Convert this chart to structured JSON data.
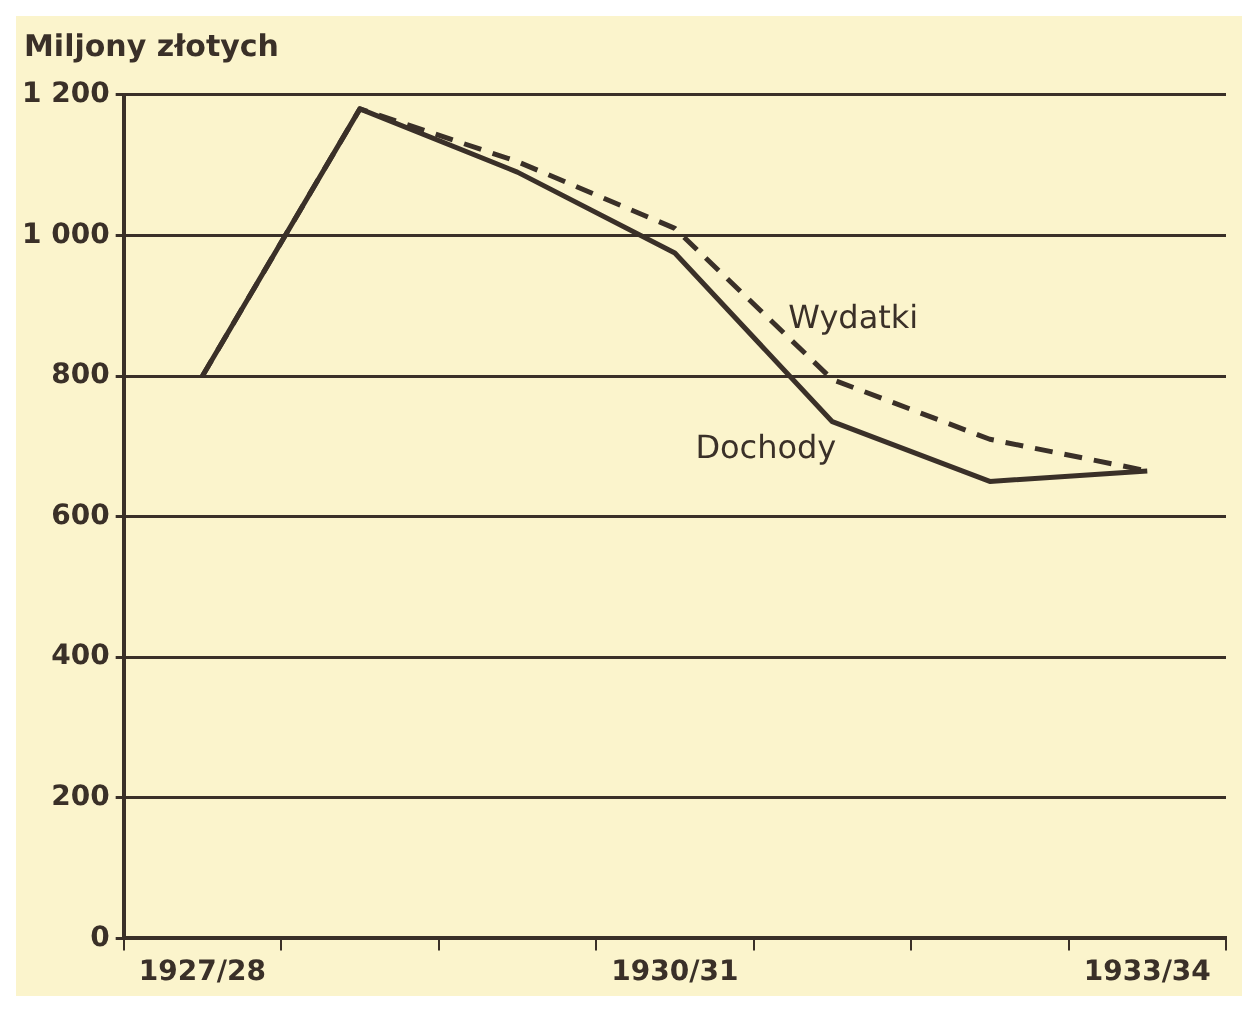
{
  "chart_data": {
    "type": "line",
    "ylabel": "Miljony złotych",
    "categories": [
      "1927/28",
      null,
      null,
      "1930/31",
      null,
      null,
      "1933/34"
    ],
    "series": [
      {
        "name": "Dochody",
        "color": "#3a3028",
        "line_style": "solid",
        "values": [
          800,
          1180,
          1090,
          975,
          735,
          650,
          665
        ]
      },
      {
        "name": "Wydatki",
        "color": "#3a3028",
        "line_style": "dashed",
        "values": [
          800,
          1180,
          1105,
          1010,
          795,
          710,
          665
        ]
      }
    ],
    "ylim": [
      0,
      1200
    ],
    "yticks": [
      0,
      200,
      400,
      600,
      800,
      {
        "value": 1000,
        "label": "1 000"
      },
      {
        "value": 1200,
        "label": "1 200"
      }
    ],
    "grid": "y",
    "legend": false,
    "marker": "none"
  }
}
